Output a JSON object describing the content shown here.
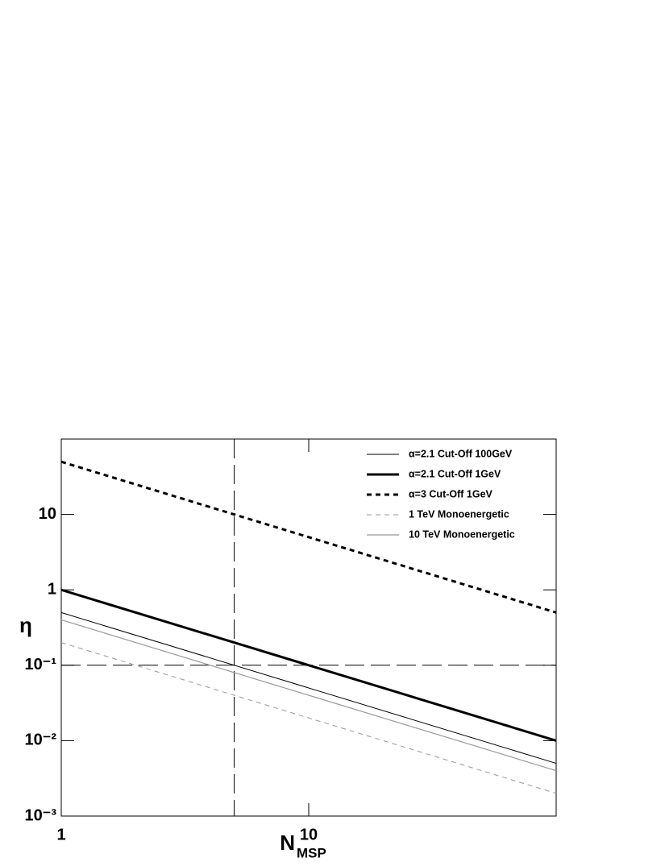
{
  "chart_data": {
    "type": "line",
    "log_x": true,
    "log_y": true,
    "x_label": "N",
    "x_label_sub": "MSP",
    "y_label": "η",
    "x": [
      1,
      100
    ],
    "series": [
      {
        "name": "α=2.1 Cut-Off 100GeV",
        "color": "#000000",
        "width": 1,
        "dash": "none",
        "values": [
          0.5,
          0.005
        ]
      },
      {
        "name": "α=2.1 Cut-Off 1GeV",
        "color": "#000000",
        "width": 3,
        "dash": "none",
        "values": [
          1,
          0.01
        ]
      },
      {
        "name": "α=3 Cut-Off 1GeV",
        "color": "#000000",
        "width": 3,
        "dash": "6 5",
        "values": [
          50,
          0.5
        ]
      },
      {
        "name": "1 TeV Monoenergetic",
        "color": "#999999",
        "width": 1,
        "dash": "6 5",
        "values": [
          0.2,
          0.002
        ]
      },
      {
        "name": "10 TeV Monoenergetic",
        "color": "#999999",
        "width": 1.2,
        "dash": "none",
        "values": [
          0.4,
          0.004
        ]
      }
    ],
    "reference_x": 5,
    "reference_y": 0.1,
    "xlim": [
      1,
      100
    ],
    "ylim": [
      0.001,
      100
    ],
    "xticks": [
      1,
      10
    ],
    "yticks": [
      {
        "value": 0.001,
        "label": "10⁻³"
      },
      {
        "value": 0.01,
        "label": "10⁻²"
      },
      {
        "value": 0.1,
        "label": "10⁻¹"
      },
      1,
      10
    ],
    "legend": "top-right"
  }
}
